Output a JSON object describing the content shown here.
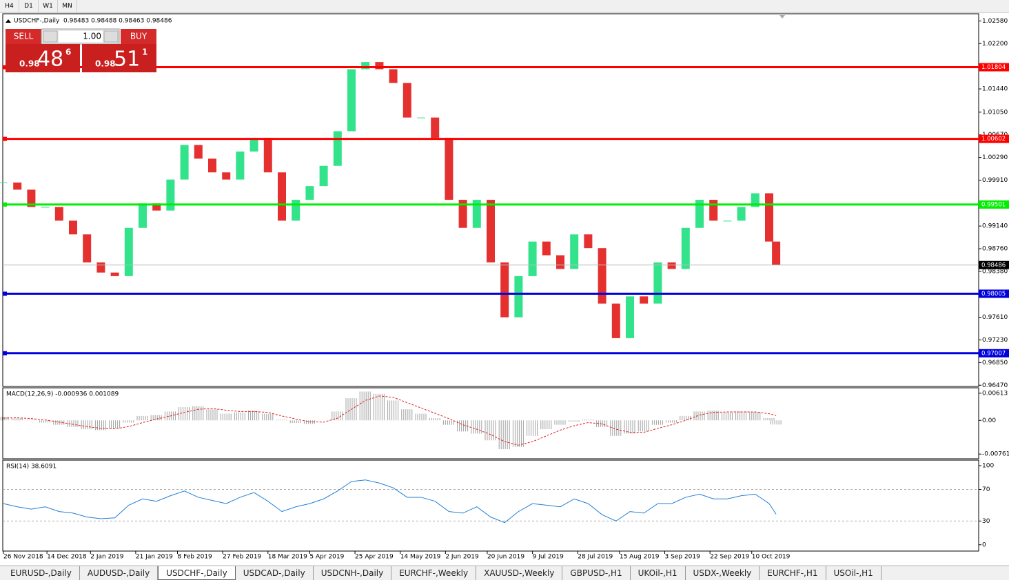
{
  "toolbar": {
    "buttons": [
      "H4",
      "D1",
      "W1",
      "MN"
    ]
  },
  "trade_panel": {
    "sell": "SELL",
    "buy": "BUY",
    "lot": "1.00",
    "sell_price": {
      "prefix": "0.98",
      "big": "48",
      "sup": "6"
    },
    "buy_price": {
      "prefix": "0.98",
      "big": "51",
      "sup": "1"
    }
  },
  "tabs": {
    "items": [
      "EURUSD-,Daily",
      "AUDUSD-,Daily",
      "USDCHF-,Daily",
      "USDCAD-,Daily",
      "USDCNH-,Daily",
      "EURCHF-,Weekly",
      "XAUUSD-,Weekly",
      "GBPUSD-,H1",
      "UKOil-,H1",
      "USDX-,Weekly",
      "EURCHF-,H1",
      "USOil-,H1"
    ],
    "active": 2
  },
  "chart_data": [
    {
      "type": "candlestick",
      "title": "USDCHF-,Daily",
      "quote": "0.98483 0.98488 0.98463 0.98486",
      "x": [
        0,
        4,
        8,
        12,
        16,
        20,
        24,
        28,
        32,
        36,
        40,
        44,
        48,
        52,
        56,
        60,
        64,
        68,
        72,
        76,
        80,
        84,
        88,
        92,
        96,
        100,
        104,
        108,
        112,
        116,
        120,
        124,
        128,
        132,
        136,
        140,
        144,
        148,
        152,
        156,
        160,
        164,
        168,
        172,
        176,
        180,
        184,
        188,
        192,
        196,
        200,
        204,
        208,
        212,
        216,
        220,
        222
      ],
      "series": [
        {
          "name": "USDCHF-",
          "up_color": "#33e38c",
          "down_color": "#e53030",
          "values": [
            0.9987,
            0.9975,
            0.9946,
            0.9946,
            0.9923,
            0.99,
            0.9853,
            0.9836,
            0.983,
            0.9911,
            0.9952,
            0.994,
            0.9992,
            1.005,
            1.0027,
            1.0004,
            0.9992,
            1.0039,
            1.0062,
            1.0004,
            0.9923,
            0.9958,
            0.9981,
            1.0015,
            1.0073,
            1.0177,
            1.0189,
            1.0177,
            1.0154,
            1.0096,
            1.0096,
            1.0062,
            0.9958,
            0.9911,
            0.9958,
            0.9853,
            0.9761,
            0.983,
            0.9888,
            0.9865,
            0.9842,
            0.99,
            0.9877,
            0.9784,
            0.9726,
            0.9796,
            0.9784,
            0.9853,
            0.9842,
            0.9911,
            0.9958,
            0.9923,
            0.9923,
            0.9946,
            0.9969,
            0.9888,
            0.98486
          ]
        }
      ],
      "levels": [
        {
          "value": 1.01804,
          "color": "#ff0000"
        },
        {
          "value": 1.00602,
          "color": "#ff0000"
        },
        {
          "value": 0.99501,
          "color": "#00ee00"
        },
        {
          "value": 0.98005,
          "color": "#0000dd"
        },
        {
          "value": 0.97007,
          "color": "#0000dd"
        }
      ],
      "current_price": 0.98486,
      "xlim": [
        0,
        280
      ],
      "ylim": [
        0.9645,
        1.027
      ],
      "yticks": [
        {
          "value": 1.0258,
          "label": "1.02580"
        },
        {
          "value": 1.022,
          "label": "1.02200"
        },
        {
          "value": 1.0144,
          "label": "1.01440"
        },
        {
          "value": 1.0105,
          "label": "1.01050"
        },
        {
          "value": 1.0067,
          "label": "1.00670"
        },
        {
          "value": 1.0029,
          "label": "1.00290"
        },
        {
          "value": 0.9991,
          "label": "0.99910"
        },
        {
          "value": 0.9914,
          "label": "0.99140"
        },
        {
          "value": 0.9876,
          "label": "0.98760"
        },
        {
          "value": 0.9838,
          "label": "0.98380"
        },
        {
          "value": 0.9761,
          "label": "0.97610"
        },
        {
          "value": 0.9723,
          "label": "0.97230"
        },
        {
          "value": 0.9685,
          "label": "0.96850"
        },
        {
          "value": 0.9647,
          "label": "0.96470"
        }
      ],
      "xticks": [
        {
          "value": 0,
          "label": "26 Nov 2018"
        },
        {
          "value": 12.5,
          "label": "14 Dec 2018"
        },
        {
          "value": 25,
          "label": "2 Jan 2019"
        },
        {
          "value": 38,
          "label": "21 Jan 2019"
        },
        {
          "value": 50,
          "label": "8 Feb 2019"
        },
        {
          "value": 63,
          "label": "27 Feb 2019"
        },
        {
          "value": 76,
          "label": "18 Mar 2019"
        },
        {
          "value": 88,
          "label": "5 Apr 2019"
        },
        {
          "value": 101,
          "label": "25 Apr 2019"
        },
        {
          "value": 114,
          "label": "14 May 2019"
        },
        {
          "value": 127,
          "label": "2 Jun 2019"
        },
        {
          "value": 139,
          "label": "20 Jun 2019"
        },
        {
          "value": 152,
          "label": "9 Jul 2019"
        },
        {
          "value": 165,
          "label": "28 Jul 2019"
        },
        {
          "value": 177,
          "label": "15 Aug 2019"
        },
        {
          "value": 190,
          "label": "3 Sep 2019"
        },
        {
          "value": 203,
          "label": "22 Sep 2019"
        },
        {
          "value": 215,
          "label": "10 Oct 2019"
        }
      ]
    },
    {
      "type": "macd",
      "title": "MACD(12,26,9) -0.000936 0.001089",
      "x": [
        0,
        4,
        8,
        12,
        16,
        20,
        24,
        28,
        32,
        36,
        40,
        44,
        48,
        52,
        56,
        60,
        64,
        68,
        72,
        76,
        80,
        84,
        88,
        92,
        96,
        100,
        104,
        108,
        112,
        116,
        120,
        124,
        128,
        132,
        136,
        140,
        144,
        148,
        152,
        156,
        160,
        164,
        168,
        172,
        176,
        180,
        184,
        188,
        192,
        196,
        200,
        204,
        208,
        212,
        216,
        220,
        222
      ],
      "series": [
        {
          "name": "MACD",
          "color": "#a0a0a0",
          "values": [
            0.0008,
            0.0005,
            0.0002,
            -0.0005,
            -0.001,
            -0.0015,
            -0.002,
            -0.0022,
            -0.0018,
            -0.0005,
            0.001,
            0.0012,
            0.002,
            0.003,
            0.0032,
            0.0025,
            0.0015,
            0.0018,
            0.0022,
            0.0015,
            0.0002,
            -0.0006,
            -0.0008,
            0,
            0.002,
            0.005,
            0.0065,
            0.006,
            0.0045,
            0.0025,
            0.0015,
            0.0005,
            -0.001,
            -0.0025,
            -0.003,
            -0.0045,
            -0.0065,
            -0.006,
            -0.0035,
            -0.002,
            -0.001,
            -0.0003,
            0.0002,
            -0.0015,
            -0.0035,
            -0.003,
            -0.0025,
            -0.001,
            -0.0005,
            0.001,
            0.002,
            0.0022,
            0.0018,
            0.002,
            0.0019,
            0.0005,
            -0.000936
          ]
        },
        {
          "name": "Signal",
          "color": "#e02020",
          "values": [
            0.0005,
            0.0006,
            0.0004,
            0.0001,
            -0.0004,
            -0.0009,
            -0.0014,
            -0.0018,
            -0.0019,
            -0.0014,
            -0.0005,
            0.0003,
            0.001,
            0.0018,
            0.0025,
            0.0027,
            0.0023,
            0.002,
            0.002,
            0.0018,
            0.001,
            0.0003,
            -0.0003,
            -0.0004,
            0.0005,
            0.0025,
            0.0045,
            0.0055,
            0.0052,
            0.004,
            0.0028,
            0.0016,
            0.0004,
            -0.001,
            -0.002,
            -0.0032,
            -0.0048,
            -0.0056,
            -0.0048,
            -0.0035,
            -0.0022,
            -0.0012,
            -0.0005,
            -0.0008,
            -0.002,
            -0.0027,
            -0.0027,
            -0.0018,
            -0.001,
            0,
            0.0012,
            0.0018,
            0.0019,
            0.0019,
            0.0019,
            0.0015,
            0.001089
          ]
        }
      ],
      "xlim": [
        0,
        280
      ],
      "ylim": [
        -0.00867,
        0.00735
      ],
      "yticks": [
        0.00613,
        {
          "value": 0,
          "label": "0.00"
        },
        -0.007612
      ]
    },
    {
      "type": "rsi",
      "title": "RSI(14) 38.6091",
      "x": [
        0,
        4,
        8,
        12,
        16,
        20,
        24,
        28,
        32,
        36,
        40,
        44,
        48,
        52,
        56,
        60,
        64,
        68,
        72,
        76,
        80,
        84,
        88,
        92,
        96,
        100,
        104,
        108,
        112,
        116,
        120,
        124,
        128,
        132,
        136,
        140,
        144,
        148,
        152,
        156,
        160,
        164,
        168,
        172,
        176,
        180,
        184,
        188,
        192,
        196,
        200,
        204,
        208,
        212,
        216,
        220,
        222
      ],
      "series": [
        {
          "name": "RSI",
          "color": "#1e7fd6",
          "values": [
            52,
            48,
            45,
            48,
            42,
            40,
            35,
            33,
            34,
            50,
            58,
            55,
            62,
            68,
            60,
            56,
            52,
            60,
            66,
            55,
            42,
            48,
            52,
            58,
            68,
            80,
            82,
            78,
            72,
            60,
            60,
            55,
            42,
            40,
            48,
            35,
            28,
            42,
            52,
            50,
            48,
            58,
            52,
            38,
            30,
            42,
            40,
            52,
            52,
            60,
            64,
            58,
            58,
            62,
            64,
            52,
            38.6091
          ]
        }
      ],
      "levels": [
        70,
        30
      ],
      "xlim": [
        0,
        280
      ],
      "ylim": [
        -8,
        107
      ],
      "yticks": [
        100,
        70,
        30,
        0
      ]
    }
  ]
}
